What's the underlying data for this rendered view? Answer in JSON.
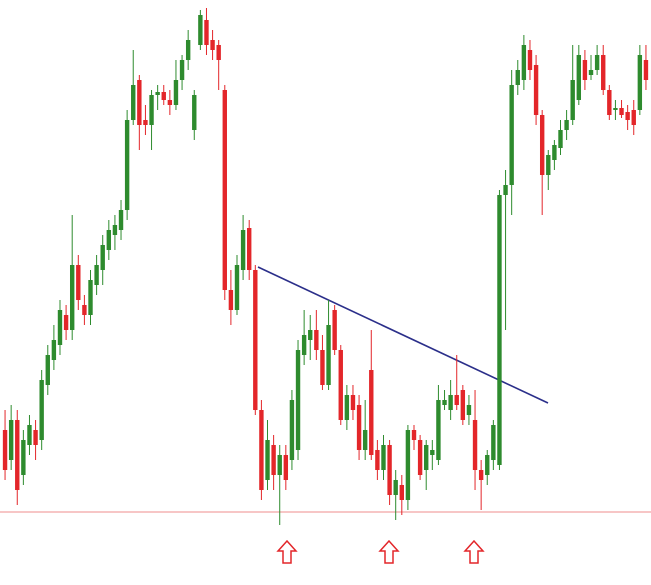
{
  "chart_data": {
    "type": "candlestick",
    "open": [
      155,
      125,
      165,
      110,
      140,
      155,
      145,
      200,
      225,
      240,
      270,
      255,
      320,
      280,
      270,
      300,
      315,
      335,
      350,
      355,
      375,
      465,
      505,
      465,
      460,
      490,
      493,
      485,
      480,
      505,
      525,
      455,
      540,
      565,
      545,
      540,
      495,
      295,
      275,
      315,
      357,
      315,
      175,
      105,
      140,
      110,
      130,
      125,
      135,
      230,
      245,
      255,
      235,
      200,
      275,
      235,
      165,
      190,
      180,
      135,
      215,
      135,
      115,
      140,
      90,
      100,
      85,
      155,
      145,
      115,
      130,
      125,
      180,
      175,
      190,
      195,
      170,
      165,
      115,
      110,
      125,
      120,
      390,
      400,
      500,
      505,
      535,
      520,
      470,
      410,
      425,
      437,
      455,
      465,
      485,
      525,
      510,
      515,
      530,
      495,
      475,
      477,
      473,
      475,
      475,
      525
    ],
    "close": [
      115,
      165,
      95,
      145,
      160,
      140,
      205,
      230,
      245,
      275,
      255,
      320,
      285,
      270,
      305,
      320,
      340,
      355,
      360,
      375,
      465,
      500,
      460,
      460,
      490,
      493,
      485,
      480,
      505,
      525,
      545,
      490,
      570,
      540,
      535,
      525,
      295,
      275,
      320,
      355,
      315,
      175,
      95,
      145,
      110,
      130,
      105,
      185,
      235,
      250,
      255,
      235,
      200,
      260,
      235,
      165,
      190,
      175,
      135,
      155,
      130,
      115,
      140,
      90,
      105,
      85,
      155,
      145,
      110,
      140,
      135,
      185,
      185,
      190,
      180,
      165,
      180,
      115,
      105,
      130,
      160,
      390,
      400,
      500,
      515,
      540,
      515,
      470,
      410,
      430,
      440,
      455,
      465,
      505,
      530,
      505,
      515,
      530,
      495,
      470,
      477,
      470,
      465,
      460,
      530,
      505
    ],
    "high": [
      175,
      180,
      175,
      155,
      170,
      165,
      215,
      240,
      260,
      285,
      280,
      370,
      330,
      290,
      315,
      330,
      350,
      365,
      370,
      385,
      475,
      535,
      510,
      480,
      495,
      500,
      500,
      495,
      525,
      530,
      555,
      495,
      575,
      577,
      555,
      545,
      500,
      315,
      330,
      370,
      365,
      320,
      185,
      165,
      150,
      140,
      140,
      195,
      245,
      275,
      270,
      275,
      250,
      285,
      280,
      240,
      200,
      200,
      190,
      185,
      255,
      145,
      150,
      145,
      115,
      110,
      160,
      160,
      150,
      145,
      145,
      200,
      195,
      205,
      230,
      200,
      190,
      195,
      125,
      135,
      165,
      395,
      415,
      515,
      525,
      550,
      545,
      530,
      475,
      435,
      445,
      465,
      475,
      540,
      540,
      535,
      530,
      540,
      540,
      500,
      485,
      485,
      480,
      485,
      540,
      540
    ],
    "low": [
      105,
      115,
      80,
      100,
      130,
      125,
      135,
      190,
      215,
      230,
      245,
      245,
      275,
      260,
      260,
      290,
      300,
      325,
      335,
      345,
      365,
      460,
      435,
      450,
      435,
      475,
      480,
      470,
      475,
      495,
      515,
      445,
      535,
      530,
      525,
      495,
      285,
      260,
      270,
      305,
      305,
      170,
      85,
      95,
      95,
      60,
      95,
      115,
      125,
      220,
      225,
      225,
      195,
      195,
      230,
      160,
      155,
      165,
      125,
      125,
      125,
      105,
      105,
      80,
      65,
      70,
      75,
      135,
      105,
      95,
      115,
      120,
      175,
      165,
      175,
      160,
      160,
      95,
      75,
      100,
      115,
      115,
      255,
      370,
      490,
      495,
      505,
      460,
      370,
      395,
      415,
      430,
      445,
      460,
      480,
      495,
      505,
      510,
      490,
      465,
      465,
      467,
      455,
      450,
      470,
      495
    ],
    "ylim": [
      0,
      585
    ],
    "up_color": "#2e8b2e",
    "down_color": "#e3262a"
  }
}
